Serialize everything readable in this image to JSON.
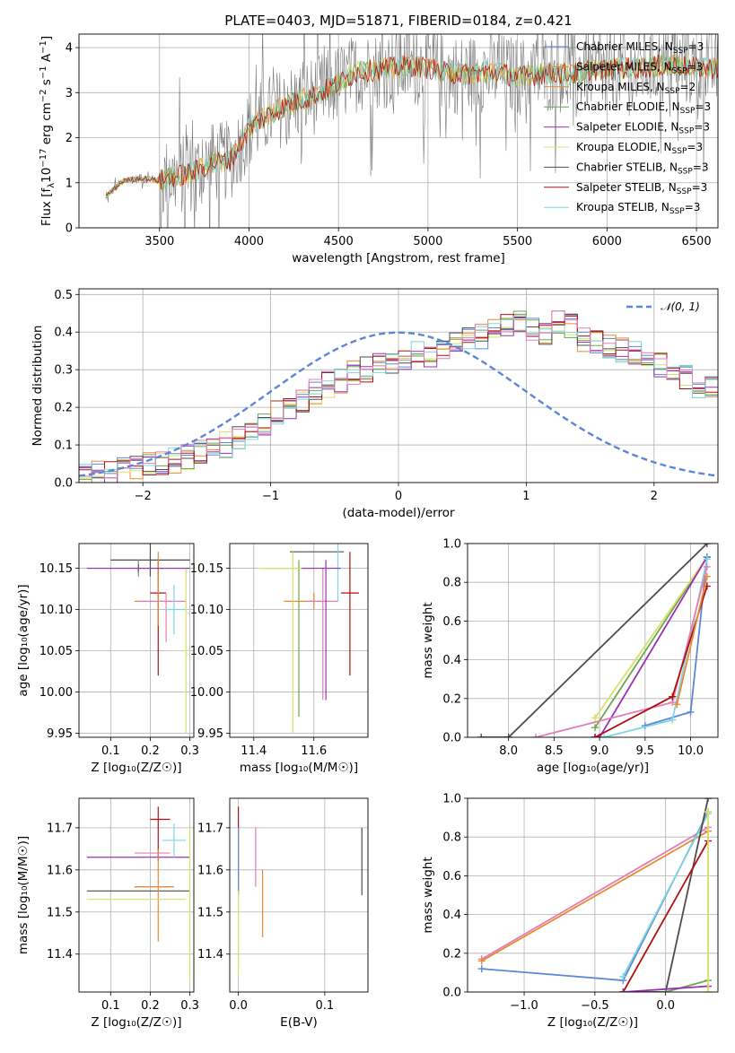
{
  "colors": {
    "chabrier_miles": "#5b87d6",
    "salpeter_miles": "#e88a35",
    "kroupa_miles": "#d98c2b",
    "chabrier_elodie": "#6aa84f",
    "salpeter_elodie": "#9b30b8",
    "kroupa_elodie": "#d8e066",
    "chabrier_stelib": "#4d4d4d",
    "salpeter_stelib": "#b01010",
    "kroupa_stelib": "#7fd6e0",
    "pink": "#e37fb8",
    "gaussian": "#5b87d6"
  },
  "chart_data": [
    {
      "id": "spectrum",
      "type": "line",
      "title": "PLATE=0403, MJD=51871, FIBERID=0184, z=0.421",
      "xlabel": "wavelength [Angstrom, rest frame]",
      "ylabel_main": "Flux [f",
      "ylabel_sub1": "λ",
      "ylabel_mid": "10",
      "ylabel_sup1": "−17",
      "ylabel_mid2": " erg cm",
      "ylabel_sup2": "−2",
      "ylabel_mid3": " s",
      "ylabel_sup3": "−1",
      "ylabel_mid4": " A",
      "ylabel_sup4": "−1",
      "ylabel_end": "]",
      "xlim": [
        3050,
        6620
      ],
      "ylim": [
        0,
        4.3
      ],
      "xticks": [
        "3500",
        "4000",
        "4500",
        "5000",
        "5500",
        "6000",
        "6500"
      ],
      "xtick_values": [
        3500,
        4000,
        4500,
        5000,
        5500,
        6000,
        6500
      ],
      "yticks": [
        "0",
        "1",
        "2",
        "3",
        "4"
      ],
      "ytick_values": [
        0,
        1,
        2,
        3,
        4
      ],
      "continuum": {
        "x": [
          3200,
          3300,
          3400,
          3500,
          3600,
          3700,
          3800,
          3900,
          4000,
          4100,
          4200,
          4300,
          4400,
          4500,
          4600,
          4700,
          4800,
          4900,
          5000,
          5100,
          5200,
          5300,
          5400,
          5500,
          5600,
          5700,
          5800,
          5900,
          6000,
          6100,
          6200,
          6300,
          6400,
          6500
        ],
        "y": [
          0.7,
          1.05,
          1.1,
          1.05,
          1.15,
          1.25,
          1.45,
          1.5,
          2.2,
          2.5,
          2.7,
          2.85,
          3.0,
          3.2,
          3.45,
          3.5,
          3.55,
          3.6,
          3.55,
          3.45,
          3.4,
          3.45,
          3.45,
          3.35,
          3.4,
          3.45,
          3.4,
          3.5,
          3.5,
          3.55,
          3.55,
          3.6,
          3.6,
          3.55
        ]
      },
      "legend": [
        {
          "base": "Chabrier MILES, N",
          "sub": "SSP",
          "tail": "=3",
          "color": "chabrier_miles"
        },
        {
          "base": "Salpeter MILES, N",
          "sub": "SSP",
          "tail": "=3",
          "color": "salpeter_miles"
        },
        {
          "base": "Kroupa MILES, N",
          "sub": "SSP",
          "tail": "=2",
          "color": "kroupa_miles"
        },
        {
          "base": "Chabrier ELODIE, N",
          "sub": "SSP",
          "tail": "=3",
          "color": "chabrier_elodie"
        },
        {
          "base": "Salpeter ELODIE, N",
          "sub": "SSP",
          "tail": "=3",
          "color": "salpeter_elodie"
        },
        {
          "base": "Kroupa ELODIE, N",
          "sub": "SSP",
          "tail": "=3",
          "color": "kroupa_elodie"
        },
        {
          "base": "Chabrier STELIB, N",
          "sub": "SSP",
          "tail": "=3",
          "color": "chabrier_stelib"
        },
        {
          "base": "Salpeter STELIB, N",
          "sub": "SSP",
          "tail": "=3",
          "color": "salpeter_stelib"
        },
        {
          "base": "Kroupa STELIB, N",
          "sub": "SSP",
          "tail": "=3",
          "color": "kroupa_stelib"
        }
      ]
    },
    {
      "id": "residuals",
      "type": "line",
      "xlabel": "(data-model)/error",
      "ylabel": "Normed distribution",
      "xlim": [
        -2.5,
        2.5
      ],
      "ylim": [
        0,
        0.515
      ],
      "xticks": [
        "−2",
        "−1",
        "0",
        "1",
        "2"
      ],
      "xtick_values": [
        -2,
        -1,
        0,
        1,
        2
      ],
      "yticks": [
        "0.0",
        "0.1",
        "0.2",
        "0.3",
        "0.4",
        "0.5"
      ],
      "ytick_values": [
        0,
        0.1,
        0.2,
        0.3,
        0.4,
        0.5
      ],
      "legend_label": "𝒩(0, 1)",
      "histogram": {
        "x_start": -2.5,
        "bin_width": 0.1,
        "heights": [
          0.02,
          0.025,
          0.03,
          0.035,
          0.04,
          0.05,
          0.05,
          0.06,
          0.07,
          0.08,
          0.09,
          0.1,
          0.12,
          0.14,
          0.16,
          0.19,
          0.2,
          0.22,
          0.24,
          0.26,
          0.27,
          0.29,
          0.3,
          0.31,
          0.32,
          0.33,
          0.35,
          0.34,
          0.36,
          0.37,
          0.38,
          0.39,
          0.4,
          0.42,
          0.43,
          0.41,
          0.4,
          0.43,
          0.42,
          0.38,
          0.37,
          0.36,
          0.35,
          0.34,
          0.33,
          0.31,
          0.3,
          0.28,
          0.26,
          0.25
        ]
      }
    },
    {
      "id": "age_vs_z",
      "type": "scatter",
      "xlabel": "Z [log₁₀(Z/Z☉)]",
      "ylabel": "age  [log₁₀(age/yr)]",
      "xlim": [
        0.02,
        0.31
      ],
      "ylim": [
        9.945,
        10.18
      ],
      "xticks": [
        "0.1",
        "0.2",
        "0.3"
      ],
      "xtick_values": [
        0.1,
        0.2,
        0.3
      ],
      "yticks": [
        "9.95",
        "10.00",
        "10.05",
        "10.10",
        "10.15"
      ],
      "ytick_values": [
        9.95,
        10.0,
        10.05,
        10.1,
        10.15
      ],
      "points": [
        {
          "x": 0.22,
          "y": 10.12,
          "xerr": [
            0.02,
            0.02
          ],
          "yerr": [
            0.1,
            0.04
          ],
          "color": "salpeter_stelib"
        },
        {
          "x": 0.2,
          "y": 10.16,
          "xerr": [
            0.1,
            0.1
          ],
          "yerr": [
            0.02,
            0.02
          ],
          "color": "chabrier_stelib"
        },
        {
          "x": 0.17,
          "y": 10.15,
          "xerr": [
            0.13,
            0.13
          ],
          "yerr": [
            0.01,
            0.01
          ],
          "color": "chabrier_elodie"
        },
        {
          "x": 0.22,
          "y": 10.11,
          "xerr": [
            0.06,
            0.03
          ],
          "yerr": [
            0.03,
            0.06
          ],
          "color": "salpeter_miles"
        },
        {
          "x": 0.24,
          "y": 10.11,
          "xerr": [
            0.07,
            0.05
          ],
          "yerr": [
            0.05,
            0.01
          ],
          "color": "pink"
        },
        {
          "x": 0.26,
          "y": 10.1,
          "xerr": [
            0.03,
            0.03
          ],
          "yerr": [
            0.03,
            0.03
          ],
          "color": "kroupa_stelib"
        },
        {
          "x": 0.29,
          "y": 10.05,
          "xerr": [
            0.01,
            0.01
          ],
          "yerr": [
            0.1,
            0.1
          ],
          "color": "kroupa_elodie"
        },
        {
          "x": 0.17,
          "y": 10.15,
          "xerr": [
            0.13,
            0.13
          ],
          "yerr": [
            0.005,
            0.005
          ],
          "color": "salpeter_elodie"
        }
      ]
    },
    {
      "id": "age_vs_mass",
      "type": "scatter",
      "xlabel": "mass [log₁₀(M/M☉)]",
      "ylabel": "",
      "xlim": [
        11.32,
        11.78
      ],
      "ylim": [
        9.945,
        10.18
      ],
      "xticks": [
        "11.4",
        "11.6"
      ],
      "xtick_values": [
        11.4,
        11.6
      ],
      "yticks": [
        "9.95",
        "10.00",
        "10.05",
        "10.10",
        "10.15"
      ],
      "ytick_values": [
        9.95,
        10.0,
        10.05,
        10.1,
        10.15
      ],
      "points": [
        {
          "x": 11.72,
          "y": 10.12,
          "xerr": [
            0.03,
            0.03
          ],
          "yerr": [
            0.1,
            0.05
          ],
          "color": "salpeter_stelib"
        },
        {
          "x": 11.6,
          "y": 10.17,
          "xerr": [
            0.08,
            0.1
          ],
          "yerr": [
            0.0,
            0.0
          ],
          "color": "chabrier_stelib"
        },
        {
          "x": 11.55,
          "y": 10.15,
          "xerr": [
            0.12,
            0.05
          ],
          "yerr": [
            0.18,
            0.01
          ],
          "color": "chabrier_elodie"
        },
        {
          "x": 11.6,
          "y": 10.11,
          "xerr": [
            0.1,
            0.05
          ],
          "yerr": [
            0.01,
            0.01
          ],
          "color": "salpeter_miles"
        },
        {
          "x": 11.63,
          "y": 10.11,
          "xerr": [
            0.05,
            0.05
          ],
          "yerr": [
            0.12,
            0.04
          ],
          "color": "pink"
        },
        {
          "x": 11.68,
          "y": 10.15,
          "xerr": [
            0.03,
            0.03
          ],
          "yerr": [
            0.04,
            0.04
          ],
          "color": "kroupa_stelib"
        },
        {
          "x": 11.53,
          "y": 10.15,
          "xerr": [
            0.12,
            0.08
          ],
          "yerr": [
            0.2,
            0.02
          ],
          "color": "kroupa_elodie"
        },
        {
          "x": 11.64,
          "y": 10.15,
          "xerr": [
            0.08,
            0.05
          ],
          "yerr": [
            0.16,
            0.01
          ],
          "color": "salpeter_elodie"
        }
      ]
    },
    {
      "id": "weight_vs_age",
      "type": "line",
      "xlabel": "age  [log₁₀(age/yr)]",
      "ylabel": "mass weight",
      "xlim": [
        7.55,
        10.3
      ],
      "ylim": [
        0,
        1.0
      ],
      "xticks": [
        "8.0",
        "8.5",
        "9.0",
        "9.5",
        "10.0"
      ],
      "xtick_values": [
        8.0,
        8.5,
        9.0,
        9.5,
        10.0
      ],
      "yticks": [
        "0.0",
        "0.2",
        "0.4",
        "0.6",
        "0.8",
        "1.0"
      ],
      "ytick_values": [
        0,
        0.2,
        0.4,
        0.6,
        0.8,
        1.0
      ],
      "series": [
        {
          "color": "chabrier_stelib",
          "x": [
            7.7,
            8.0,
            10.18
          ],
          "y": [
            0.0,
            0.0,
            1.0
          ]
        },
        {
          "color": "chabrier_elodie",
          "x": [
            8.95,
            10.18
          ],
          "y": [
            0.05,
            0.93
          ]
        },
        {
          "color": "kroupa_elodie",
          "x": [
            8.95,
            10.18
          ],
          "y": [
            0.1,
            0.93
          ]
        },
        {
          "color": "salpeter_elodie",
          "x": [
            8.95,
            9.0,
            10.18
          ],
          "y": [
            0.0,
            0.0,
            0.93
          ]
        },
        {
          "color": "chabrier_miles",
          "x": [
            9.5,
            10.0,
            10.18
          ],
          "y": [
            0.06,
            0.13,
            0.93
          ]
        },
        {
          "color": "kroupa_stelib",
          "x": [
            9.05,
            9.8,
            10.18
          ],
          "y": [
            0.0,
            0.09,
            0.92
          ]
        },
        {
          "color": "pink",
          "x": [
            8.3,
            9.8,
            10.18
          ],
          "y": [
            0.0,
            0.18,
            0.88
          ]
        },
        {
          "color": "salpeter_stelib",
          "x": [
            8.95,
            9.8,
            10.18
          ],
          "y": [
            0.0,
            0.21,
            0.78
          ]
        },
        {
          "color": "salpeter_miles",
          "x": [
            9.85,
            10.18
          ],
          "y": [
            0.17,
            0.83
          ]
        }
      ]
    },
    {
      "id": "mass_vs_z",
      "type": "scatter",
      "xlabel": "Z [log₁₀(Z/Z☉)]",
      "ylabel": "mass [log₁₀(M/M☉)]",
      "xlim": [
        0.02,
        0.31
      ],
      "ylim": [
        11.31,
        11.77
      ],
      "xticks": [
        "0.1",
        "0.2",
        "0.3"
      ],
      "xtick_values": [
        0.1,
        0.2,
        0.3
      ],
      "yticks": [
        "11.4",
        "11.5",
        "11.6",
        "11.7"
      ],
      "ytick_values": [
        11.4,
        11.5,
        11.6,
        11.7
      ],
      "points": [
        {
          "x": 0.22,
          "y": 11.72,
          "xerr": [
            0.02,
            0.03
          ],
          "yerr": [
            0.1,
            0.03
          ],
          "color": "salpeter_stelib"
        },
        {
          "x": 0.17,
          "y": 11.63,
          "xerr": [
            0.13,
            0.13
          ],
          "yerr": [
            0.0,
            0.0
          ],
          "color": "salpeter_elodie"
        },
        {
          "x": 0.17,
          "y": 11.55,
          "xerr": [
            0.13,
            0.13
          ],
          "yerr": [
            0.0,
            0.0
          ],
          "color": "chabrier_stelib"
        },
        {
          "x": 0.2,
          "y": 11.56,
          "xerr": [
            0.04,
            0.05
          ],
          "yerr": [
            0.0,
            0.0
          ],
          "color": "chabrier_miles"
        },
        {
          "x": 0.22,
          "y": 11.56,
          "xerr": [
            0.06,
            0.04
          ],
          "yerr": [
            0.13,
            0.09
          ],
          "color": "salpeter_miles"
        },
        {
          "x": 0.22,
          "y": 11.64,
          "xerr": [
            0.06,
            0.03
          ],
          "yerr": [
            0.0,
            0.0
          ],
          "color": "pink"
        },
        {
          "x": 0.26,
          "y": 11.67,
          "xerr": [
            0.03,
            0.03
          ],
          "yerr": [
            0.04,
            0.04
          ],
          "color": "kroupa_stelib"
        },
        {
          "x": 0.17,
          "y": 11.53,
          "xerr": [
            0.13,
            0.12
          ],
          "yerr": [
            0.0,
            0.0
          ],
          "color": "kroupa_elodie"
        },
        {
          "x": 0.3,
          "y": 11.55,
          "xerr": [
            0.0,
            0.0
          ],
          "yerr": [
            0.22,
            0.15
          ],
          "color": "kroupa_elodie"
        }
      ]
    },
    {
      "id": "mass_vs_ebv",
      "type": "scatter",
      "xlabel": "E(B-V)",
      "ylabel": "",
      "xlim": [
        -0.01,
        0.15
      ],
      "ylim": [
        11.31,
        11.77
      ],
      "xticks": [
        "0.0",
        "0.1"
      ],
      "xtick_values": [
        0.0,
        0.1
      ],
      "yticks": [
        "11.4",
        "11.5",
        "11.6",
        "11.7"
      ],
      "ytick_values": [
        11.4,
        11.5,
        11.6,
        11.7
      ],
      "points": [
        {
          "x": 0.0,
          "y": 11.72,
          "xerr": [
            0,
            0
          ],
          "yerr": [
            0.18,
            0.03
          ],
          "color": "salpeter_stelib"
        },
        {
          "x": 0.0,
          "y": 11.6,
          "xerr": [
            0,
            0
          ],
          "yerr": [
            0.25,
            0.1
          ],
          "color": "kroupa_elodie"
        },
        {
          "x": 0.0,
          "y": 11.65,
          "xerr": [
            0,
            0
          ],
          "yerr": [
            0.1,
            0.05
          ],
          "color": "chabrier_miles"
        },
        {
          "x": 0.02,
          "y": 11.64,
          "xerr": [
            0,
            0
          ],
          "yerr": [
            0.08,
            0.06
          ],
          "color": "pink"
        },
        {
          "x": 0.028,
          "y": 11.52,
          "xerr": [
            0,
            0
          ],
          "yerr": [
            0.08,
            0.08
          ],
          "color": "salpeter_miles"
        },
        {
          "x": 0.143,
          "y": 11.62,
          "xerr": [
            0,
            0
          ],
          "yerr": [
            0.08,
            0.08
          ],
          "color": "chabrier_stelib"
        }
      ]
    },
    {
      "id": "weight_vs_z",
      "type": "line",
      "xlabel": "Z [log₁₀(Z/Z☉)]",
      "ylabel": "mass weight",
      "xlim": [
        -1.4,
        0.37
      ],
      "ylim": [
        0,
        1.0
      ],
      "xticks": [
        "−1.0",
        "−0.5",
        "0.0"
      ],
      "xtick_values": [
        -1.0,
        -0.5,
        0.0
      ],
      "yticks": [
        "0.0",
        "0.2",
        "0.4",
        "0.6",
        "0.8",
        "1.0"
      ],
      "ytick_values": [
        0,
        0.2,
        0.4,
        0.6,
        0.8,
        1.0
      ],
      "series": [
        {
          "color": "pink",
          "x": [
            -1.3,
            0.3
          ],
          "y": [
            0.17,
            0.85
          ]
        },
        {
          "color": "salpeter_miles",
          "x": [
            -1.3,
            0.3
          ],
          "y": [
            0.16,
            0.83
          ]
        },
        {
          "color": "chabrier_miles",
          "x": [
            -1.3,
            -0.3,
            0.3
          ],
          "y": [
            0.12,
            0.06,
            0.93
          ]
        },
        {
          "color": "kroupa_stelib",
          "x": [
            -0.3,
            0.3
          ],
          "y": [
            0.08,
            0.92
          ]
        },
        {
          "color": "chabrier_stelib",
          "x": [
            -0.3,
            0.0,
            0.3
          ],
          "y": [
            0.0,
            0.0,
            1.0
          ]
        },
        {
          "color": "salpeter_stelib",
          "x": [
            -0.3,
            0.3
          ],
          "y": [
            0.0,
            0.78
          ]
        },
        {
          "color": "chabrier_elodie",
          "x": [
            0.0,
            0.3
          ],
          "y": [
            0.0,
            0.06
          ]
        },
        {
          "color": "salpeter_elodie",
          "x": [
            -0.3,
            0.3
          ],
          "y": [
            0.0,
            0.03
          ]
        },
        {
          "color": "kroupa_elodie",
          "x": [
            0.3,
            0.3
          ],
          "y": [
            0.0,
            0.93
          ]
        }
      ]
    }
  ]
}
